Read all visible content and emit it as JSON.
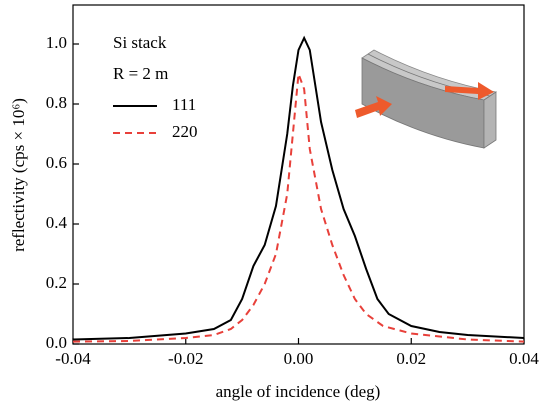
{
  "chart_data": {
    "type": "line",
    "xlabel": "angle of incidence (deg)",
    "ylabel": "reflectivity (cps × 10⁶)",
    "legend_title": [
      "Si stack",
      "R = 2 m"
    ],
    "legend": "upper left",
    "xlim": [
      -0.04,
      0.04
    ],
    "xticks": [
      -0.04,
      -0.02,
      {
        "value": 0,
        "label": "0.00"
      },
      0.02,
      0.04
    ],
    "ylim": [
      0,
      1.13
    ],
    "yticks": [
      {
        "value": 0,
        "label": "0.0"
      },
      0.2,
      0.4,
      0.6,
      0.8,
      {
        "value": 1,
        "label": "1.0"
      }
    ],
    "series": [
      {
        "name": "111",
        "color": "#000000",
        "dash": false,
        "x": [
          -0.04,
          -0.03,
          -0.02,
          -0.015,
          -0.012,
          -0.01,
          -0.008,
          -0.006,
          -0.004,
          -0.002,
          -0.001,
          0,
          0.001,
          0.002,
          0.003,
          0.004,
          0.006,
          0.008,
          0.01,
          0.012,
          0.014,
          0.016,
          0.02,
          0.025,
          0.03,
          0.04
        ],
        "values": [
          0.015,
          0.02,
          0.035,
          0.05,
          0.08,
          0.15,
          0.26,
          0.33,
          0.46,
          0.7,
          0.86,
          0.98,
          1.02,
          0.98,
          0.86,
          0.74,
          0.58,
          0.45,
          0.36,
          0.25,
          0.15,
          0.1,
          0.06,
          0.04,
          0.03,
          0.02
        ]
      },
      {
        "name": "220",
        "color": "#e8403a",
        "dash": true,
        "x": [
          -0.04,
          -0.03,
          -0.02,
          -0.015,
          -0.012,
          -0.01,
          -0.008,
          -0.006,
          -0.004,
          -0.002,
          -0.001,
          0,
          0.001,
          0.002,
          0.004,
          0.006,
          0.008,
          0.01,
          0.012,
          0.015,
          0.02,
          0.03,
          0.04
        ],
        "values": [
          0.008,
          0.01,
          0.02,
          0.03,
          0.05,
          0.08,
          0.13,
          0.2,
          0.3,
          0.5,
          0.7,
          0.9,
          0.85,
          0.65,
          0.45,
          0.33,
          0.23,
          0.15,
          0.1,
          0.06,
          0.035,
          0.015,
          0.008
        ]
      }
    ]
  }
}
